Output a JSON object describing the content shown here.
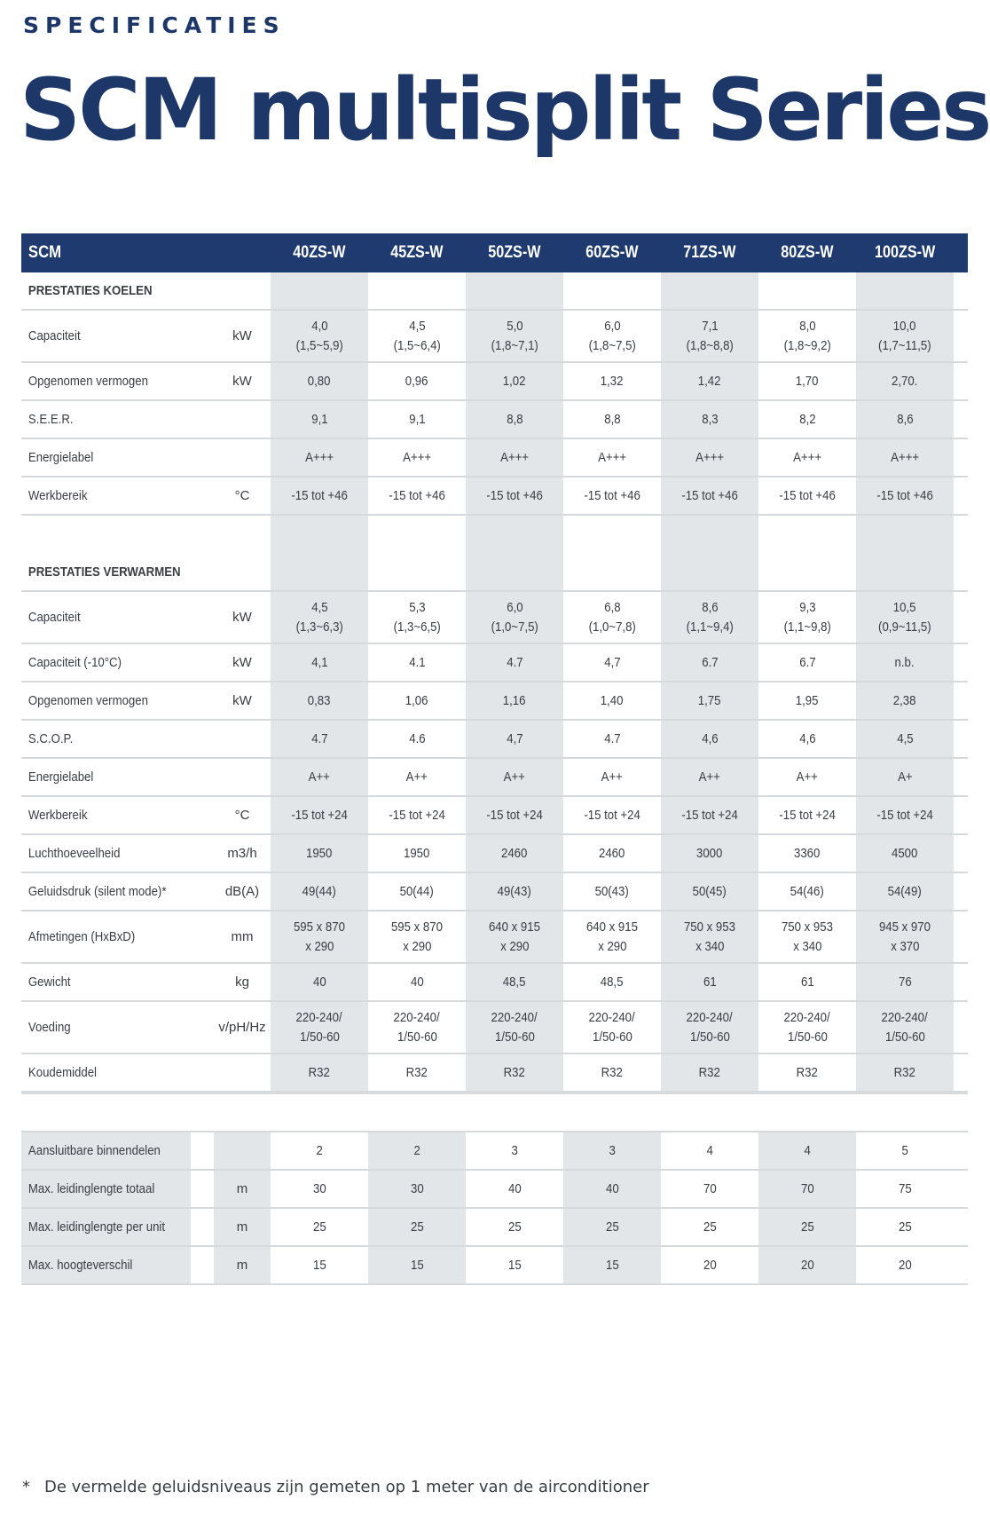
{
  "header": {
    "kicker": "SPECIFICATIES",
    "title": "SCM multisplit Series"
  },
  "table": {
    "corner": "SCM",
    "models": [
      "40ZS-W",
      "45ZS-W",
      "50ZS-W",
      "60ZS-W",
      "71ZS-W",
      "80ZS-W",
      "100ZS-W"
    ],
    "cooling": {
      "title": "PRESTATIES KOELEN",
      "rows": [
        {
          "label": "Capaciteit",
          "unit": "kW",
          "tall": true,
          "values": [
            [
              "4,0",
              "(1,5~5,9)"
            ],
            [
              "4,5",
              "(1,5~6,4)"
            ],
            [
              "5,0",
              "(1,8~7,1)"
            ],
            [
              "6,0",
              "(1,8~7,5)"
            ],
            [
              "7,1",
              "(1,8~8,8)"
            ],
            [
              "8,0",
              "(1,8~9,2)"
            ],
            [
              "10,0",
              "(1,7~11,5)"
            ]
          ]
        },
        {
          "label": "Opgenomen vermogen",
          "unit": "kW",
          "values": [
            [
              "0,80"
            ],
            [
              "0,96"
            ],
            [
              "1,02"
            ],
            [
              "1,32"
            ],
            [
              "1,42"
            ],
            [
              "1,70"
            ],
            [
              "2,70."
            ]
          ]
        },
        {
          "label": "S.E.E.R.",
          "unit": "",
          "values": [
            [
              "9,1"
            ],
            [
              "9,1"
            ],
            [
              "8,8"
            ],
            [
              "8,8"
            ],
            [
              "8,3"
            ],
            [
              "8,2"
            ],
            [
              "8,6"
            ]
          ]
        },
        {
          "label": "Energielabel",
          "unit": "",
          "values": [
            [
              "A+++"
            ],
            [
              "A+++"
            ],
            [
              "A+++"
            ],
            [
              "A+++"
            ],
            [
              "A+++"
            ],
            [
              "A+++"
            ],
            [
              "A+++"
            ]
          ]
        },
        {
          "label": "Werkbereik",
          "unit": "°C",
          "values": [
            [
              "-15 tot +46"
            ],
            [
              "-15 tot +46"
            ],
            [
              "-15 tot +46"
            ],
            [
              "-15 tot +46"
            ],
            [
              "-15 tot +46"
            ],
            [
              "-15 tot +46"
            ],
            [
              "-15 tot +46"
            ]
          ]
        }
      ]
    },
    "heating": {
      "title": "PRESTATIES VERWARMEN",
      "rows": [
        {
          "label": "Capaciteit",
          "unit": "kW",
          "tall": true,
          "values": [
            [
              "4,5",
              "(1,3~6,3)"
            ],
            [
              "5,3",
              "(1,3~6,5)"
            ],
            [
              "6,0",
              "(1,0~7,5)"
            ],
            [
              "6,8",
              "(1,0~7,8)"
            ],
            [
              "8,6",
              "(1,1~9,4)"
            ],
            [
              "9,3",
              "(1,1~9,8)"
            ],
            [
              "10,5",
              "(0,9~11,5)"
            ]
          ]
        },
        {
          "label": "Capaciteit (-10°C)",
          "unit": "kW",
          "values": [
            [
              "4,1"
            ],
            [
              "4.1"
            ],
            [
              "4.7"
            ],
            [
              "4,7"
            ],
            [
              "6.7"
            ],
            [
              "6.7"
            ],
            [
              "n.b."
            ]
          ]
        },
        {
          "label": "Opgenomen vermogen",
          "unit": "kW",
          "values": [
            [
              "0,83"
            ],
            [
              "1,06"
            ],
            [
              "1,16"
            ],
            [
              "1,40"
            ],
            [
              "1,75"
            ],
            [
              "1,95"
            ],
            [
              "2,38"
            ]
          ]
        },
        {
          "label": "S.C.O.P.",
          "unit": "",
          "values": [
            [
              "4.7"
            ],
            [
              "4.6"
            ],
            [
              "4,7"
            ],
            [
              "4.7"
            ],
            [
              "4,6"
            ],
            [
              "4,6"
            ],
            [
              "4,5"
            ]
          ]
        },
        {
          "label": "Energielabel",
          "unit": "",
          "values": [
            [
              "A++"
            ],
            [
              "A++"
            ],
            [
              "A++"
            ],
            [
              "A++"
            ],
            [
              "A++"
            ],
            [
              "A++"
            ],
            [
              "A+"
            ]
          ]
        },
        {
          "label": "Werkbereik",
          "unit": "°C",
          "values": [
            [
              "-15 tot +24"
            ],
            [
              "-15 tot +24"
            ],
            [
              "-15 tot +24"
            ],
            [
              "-15 tot +24"
            ],
            [
              "-15 tot +24"
            ],
            [
              "-15 tot +24"
            ],
            [
              "-15 tot +24"
            ]
          ]
        },
        {
          "label": "Luchthoeveelheid",
          "unit": "m3/h",
          "values": [
            [
              "1950"
            ],
            [
              "1950"
            ],
            [
              "2460"
            ],
            [
              "2460"
            ],
            [
              "3000"
            ],
            [
              "3360"
            ],
            [
              "4500"
            ]
          ]
        },
        {
          "label": "Geluidsdruk (silent mode)*",
          "unit": "dB(A)",
          "values": [
            [
              "49(44)"
            ],
            [
              "50(44)"
            ],
            [
              "49(43)"
            ],
            [
              "50(43)"
            ],
            [
              "50(45)"
            ],
            [
              "54(46)"
            ],
            [
              "54(49)"
            ]
          ]
        },
        {
          "label": "Afmetingen (HxBxD)",
          "unit": "mm",
          "tall": true,
          "values": [
            [
              "595 x 870",
              "x 290"
            ],
            [
              "595 x 870",
              "x 290"
            ],
            [
              "640 x 915",
              "x 290"
            ],
            [
              "640 x 915",
              "x 290"
            ],
            [
              "750 x 953",
              "x 340"
            ],
            [
              "750 x 953",
              "x 340"
            ],
            [
              "945 x 970",
              "x 370"
            ]
          ]
        },
        {
          "label": "Gewicht",
          "unit": "kg",
          "values": [
            [
              "40"
            ],
            [
              "40"
            ],
            [
              "48,5"
            ],
            [
              "48,5"
            ],
            [
              "61"
            ],
            [
              "61"
            ],
            [
              "76"
            ]
          ]
        },
        {
          "label": "Voeding",
          "unit": "v/pH/Hz",
          "tall": true,
          "values": [
            [
              "220-240/",
              "1/50-60"
            ],
            [
              "220-240/",
              "1/50-60"
            ],
            [
              "220-240/",
              "1/50-60"
            ],
            [
              "220-240/",
              "1/50-60"
            ],
            [
              "220-240/",
              "1/50-60"
            ],
            [
              "220-240/",
              "1/50-60"
            ],
            [
              "220-240/",
              "1/50-60"
            ]
          ]
        },
        {
          "label": "Koudemiddel",
          "unit": "",
          "values": [
            [
              "R32"
            ],
            [
              "R32"
            ],
            [
              "R32"
            ],
            [
              "R32"
            ],
            [
              "R32"
            ],
            [
              "R32"
            ],
            [
              "R32"
            ]
          ]
        }
      ]
    },
    "installation": {
      "rows": [
        {
          "label": "Aansluitbare binnendelen",
          "unit": "",
          "values": [
            [
              "2"
            ],
            [
              "2"
            ],
            [
              "3"
            ],
            [
              "3"
            ],
            [
              "4"
            ],
            [
              "4"
            ],
            [
              "5"
            ]
          ]
        },
        {
          "label": "Max. leidinglengte totaal",
          "unit": "m",
          "values": [
            [
              "30"
            ],
            [
              "30"
            ],
            [
              "40"
            ],
            [
              "40"
            ],
            [
              "70"
            ],
            [
              "70"
            ],
            [
              "75"
            ]
          ]
        },
        {
          "label": "Max. leidinglengte per unit",
          "unit": "m",
          "values": [
            [
              "25"
            ],
            [
              "25"
            ],
            [
              "25"
            ],
            [
              "25"
            ],
            [
              "25"
            ],
            [
              "25"
            ],
            [
              "25"
            ]
          ]
        },
        {
          "label": "Max. hoogteverschil",
          "unit": "m",
          "values": [
            [
              "15"
            ],
            [
              "15"
            ],
            [
              "15"
            ],
            [
              "15"
            ],
            [
              "20"
            ],
            [
              "20"
            ],
            [
              "20"
            ]
          ]
        }
      ]
    }
  },
  "footnote": {
    "marker": "*",
    "text": "De vermelde geluidsniveaus zijn gemeten op 1 meter van de airconditioner"
  },
  "colors": {
    "brand_navy": "#1d3868",
    "header_bar": "#1e3a6e",
    "shade": "#e2e6e8"
  }
}
